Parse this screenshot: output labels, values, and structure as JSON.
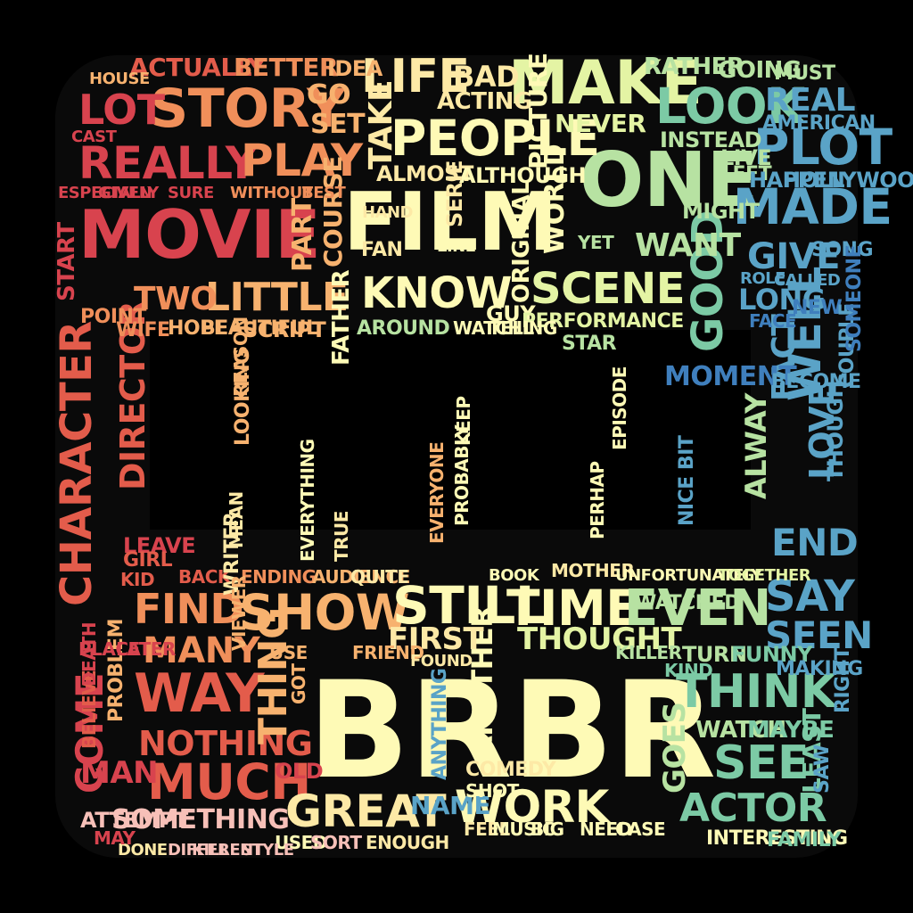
{
  "palette": {
    "red": "#d8434e",
    "red_orange": "#e35c4b",
    "orange": "#f08f5a",
    "light_orange": "#f7b26f",
    "cream": "#fde9a6",
    "pale_yellow": "#fefab6",
    "pale_green": "#e4f4a4",
    "green": "#b7e2a2",
    "teal": "#7ccaa5",
    "blue": "#5aa3c7",
    "dark_blue": "#3f7fbd",
    "pink": "#f7c0b8"
  },
  "words": [
    {
      "text": "BRBR",
      "color": "pale_yellow"
    },
    {
      "text": "FILM",
      "color": "pale_yellow"
    },
    {
      "text": "MOVIE",
      "color": "red"
    },
    {
      "text": "ONE",
      "color": "green"
    },
    {
      "text": "MAKE",
      "color": "pale_green"
    },
    {
      "text": "STORY",
      "color": "orange"
    },
    {
      "text": "PEOPLE",
      "color": "pale_yellow"
    },
    {
      "text": "LOOK",
      "color": "teal"
    },
    {
      "text": "PLOT",
      "color": "blue"
    },
    {
      "text": "MADE",
      "color": "blue"
    },
    {
      "text": "CHARACTER",
      "color": "red_orange"
    },
    {
      "text": "DIRECTOR",
      "color": "red_orange"
    },
    {
      "text": "REALLY",
      "color": "red"
    },
    {
      "text": "PLAY",
      "color": "orange"
    },
    {
      "text": "LIFE",
      "color": "cream"
    },
    {
      "text": "BAD",
      "color": "cream"
    },
    {
      "text": "KNOW",
      "color": "pale_yellow"
    },
    {
      "text": "SCENE",
      "color": "pale_green"
    },
    {
      "text": "LITTLE",
      "color": "light_orange"
    },
    {
      "text": "TWO",
      "color": "orange"
    },
    {
      "text": "GOOD",
      "color": "teal"
    },
    {
      "text": "WELL",
      "color": "blue"
    },
    {
      "text": "LOVE",
      "color": "blue"
    },
    {
      "text": "FACT",
      "color": "blue"
    },
    {
      "text": "GIVE",
      "color": "blue"
    },
    {
      "text": "REAL",
      "color": "blue"
    },
    {
      "text": "WANT",
      "color": "green"
    },
    {
      "text": "SHOW",
      "color": "light_orange"
    },
    {
      "text": "STILL",
      "color": "pale_yellow"
    },
    {
      "text": "TIME",
      "color": "pale_yellow"
    },
    {
      "text": "EVEN",
      "color": "green"
    },
    {
      "text": "FIND",
      "color": "orange"
    },
    {
      "text": "MANY",
      "color": "orange"
    },
    {
      "text": "WAY",
      "color": "red_orange"
    },
    {
      "text": "NOTHING",
      "color": "red_orange"
    },
    {
      "text": "MUCH",
      "color": "red_orange"
    },
    {
      "text": "SOMETHING",
      "color": "pink"
    },
    {
      "text": "GREAT",
      "color": "cream"
    },
    {
      "text": "WORK",
      "color": "pale_yellow"
    },
    {
      "text": "SEE",
      "color": "teal"
    },
    {
      "text": "ACTOR",
      "color": "teal"
    },
    {
      "text": "THINK",
      "color": "teal"
    },
    {
      "text": "SAY",
      "color": "blue"
    },
    {
      "text": "SEEN",
      "color": "blue"
    },
    {
      "text": "END",
      "color": "blue"
    },
    {
      "text": "COME",
      "color": "red"
    },
    {
      "text": "MAN",
      "color": "red"
    },
    {
      "text": "THING",
      "color": "light_orange"
    },
    {
      "text": "ANOTHER",
      "color": "pale_yellow"
    },
    {
      "text": "THOUGHT",
      "color": "pale_green"
    },
    {
      "text": "FIRST",
      "color": "cream"
    },
    {
      "text": "LOT",
      "color": "red"
    },
    {
      "text": "ACTUALLY",
      "color": "red_orange"
    },
    {
      "text": "BETTER",
      "color": "orange"
    },
    {
      "text": "SET",
      "color": "light_orange"
    },
    {
      "text": "GO",
      "color": "light_orange"
    },
    {
      "text": "IDEA",
      "color": "light_orange"
    },
    {
      "text": "ACTING",
      "color": "cream"
    },
    {
      "text": "NEVER",
      "color": "pale_green"
    },
    {
      "text": "RATHER",
      "color": "green"
    },
    {
      "text": "GOING",
      "color": "green"
    },
    {
      "text": "MUST",
      "color": "green"
    },
    {
      "text": "INSTEAD",
      "color": "green"
    },
    {
      "text": "ALMOST",
      "color": "cream"
    },
    {
      "text": "ALTHOUGH",
      "color": "pale_yellow"
    },
    {
      "text": "WORLD",
      "color": "pale_yellow"
    },
    {
      "text": "PICTURE",
      "color": "pale_yellow"
    },
    {
      "text": "TAKE",
      "color": "cream"
    },
    {
      "text": "SERIE",
      "color": "cream"
    },
    {
      "text": "LINE",
      "color": "pale_yellow"
    },
    {
      "text": "FAN",
      "color": "cream"
    },
    {
      "text": "PART",
      "color": "light_orange"
    },
    {
      "text": "COURSE",
      "color": "light_orange"
    },
    {
      "text": "HAND",
      "color": "cream"
    },
    {
      "text": "ORIGINAL",
      "color": "pale_yellow"
    },
    {
      "text": "GUY",
      "color": "pale_yellow"
    },
    {
      "text": "PERFORMANCE",
      "color": "pale_green"
    },
    {
      "text": "STAR",
      "color": "green"
    },
    {
      "text": "YET",
      "color": "green"
    },
    {
      "text": "MIGHT",
      "color": "green"
    },
    {
      "text": "LIVE",
      "color": "green"
    },
    {
      "text": "LEFT",
      "color": "green"
    },
    {
      "text": "HAPPEN",
      "color": "blue"
    },
    {
      "text": "HOLLYWOOD",
      "color": "blue"
    },
    {
      "text": "AMERICAN",
      "color": "blue"
    },
    {
      "text": "LONG",
      "color": "blue"
    },
    {
      "text": "ROLE",
      "color": "blue"
    },
    {
      "text": "CALLED",
      "color": "blue"
    },
    {
      "text": "SONG",
      "color": "blue"
    },
    {
      "text": "NEW",
      "color": "dark_blue"
    },
    {
      "text": "FACE",
      "color": "dark_blue"
    },
    {
      "text": "COUPLE",
      "color": "blue"
    },
    {
      "text": "SOMEONE",
      "color": "dark_blue"
    },
    {
      "text": "MOMENT",
      "color": "dark_blue"
    },
    {
      "text": "ALWAY",
      "color": "green"
    },
    {
      "text": "THOUGH",
      "color": "blue"
    },
    {
      "text": "BECOME",
      "color": "blue"
    },
    {
      "text": "NICE BIT",
      "color": "blue"
    },
    {
      "text": "AROUND",
      "color": "green"
    },
    {
      "text": "WATCHING",
      "color": "pale_yellow"
    },
    {
      "text": "TELL",
      "color": "pale_yellow"
    },
    {
      "text": "KEEP",
      "color": "pale_yellow"
    },
    {
      "text": "PROBABLY",
      "color": "pale_yellow"
    },
    {
      "text": "PERHAP",
      "color": "pale_yellow"
    },
    {
      "text": "EPISODE",
      "color": "pale_yellow"
    },
    {
      "text": "FATHER",
      "color": "pale_yellow"
    },
    {
      "text": "SCRIPT",
      "color": "light_orange"
    },
    {
      "text": "BEAUTIFUL",
      "color": "light_orange"
    },
    {
      "text": "HOPE",
      "color": "light_orange"
    },
    {
      "text": "WIFE",
      "color": "orange"
    },
    {
      "text": "POINT",
      "color": "orange"
    },
    {
      "text": "START",
      "color": "red"
    },
    {
      "text": "ESPECIALLY",
      "color": "red"
    },
    {
      "text": "GIVEN",
      "color": "red"
    },
    {
      "text": "SURE",
      "color": "red"
    },
    {
      "text": "WITHOUT",
      "color": "orange"
    },
    {
      "text": "BEST",
      "color": "orange"
    },
    {
      "text": "HOUSE",
      "color": "light_orange"
    },
    {
      "text": "CAST",
      "color": "red"
    },
    {
      "text": "LEAVE",
      "color": "red"
    },
    {
      "text": "GIRL",
      "color": "red_orange"
    },
    {
      "text": "KID",
      "color": "red_orange"
    },
    {
      "text": "BACK",
      "color": "red_orange"
    },
    {
      "text": "ENDING",
      "color": "orange"
    },
    {
      "text": "AUDIENCE",
      "color": "light_orange"
    },
    {
      "text": "QUITE",
      "color": "cream"
    },
    {
      "text": "MEAN",
      "color": "cream"
    },
    {
      "text": "LOOKING",
      "color": "light_orange"
    },
    {
      "text": "REASON",
      "color": "light_orange"
    },
    {
      "text": "EVERYONE",
      "color": "light_orange"
    },
    {
      "text": "EVERYTHING",
      "color": "pale_yellow"
    },
    {
      "text": "TRUE",
      "color": "cream"
    },
    {
      "text": "WRITER",
      "color": "cream"
    },
    {
      "text": "VIEWER",
      "color": "light_orange"
    },
    {
      "text": "USE",
      "color": "light_orange"
    },
    {
      "text": "FRIEND",
      "color": "light_orange"
    },
    {
      "text": "FOUND",
      "color": "cream"
    },
    {
      "text": "MOTHER",
      "color": "cream"
    },
    {
      "text": "BOOK",
      "color": "pale_yellow"
    },
    {
      "text": "UNFORTUNATELY",
      "color": "pale_yellow"
    },
    {
      "text": "TOGETHER",
      "color": "pale_green"
    },
    {
      "text": "WATCHED",
      "color": "green"
    },
    {
      "text": "KILLER",
      "color": "green"
    },
    {
      "text": "TURN",
      "color": "green"
    },
    {
      "text": "FUNNY",
      "color": "teal"
    },
    {
      "text": "KIND",
      "color": "teal"
    },
    {
      "text": "GOES",
      "color": "green"
    },
    {
      "text": "WATCH",
      "color": "green"
    },
    {
      "text": "MAYBE",
      "color": "teal"
    },
    {
      "text": "LEAST",
      "color": "teal"
    },
    {
      "text": "RIGHT",
      "color": "blue"
    },
    {
      "text": "MAKING",
      "color": "blue"
    },
    {
      "text": "NAME",
      "color": "blue"
    },
    {
      "text": "FEEL",
      "color": "cream"
    },
    {
      "text": "MUSIC",
      "color": "pale_yellow"
    },
    {
      "text": "BIG",
      "color": "pale_yellow"
    },
    {
      "text": "NEED",
      "color": "pale_yellow"
    },
    {
      "text": "CASE",
      "color": "pale_yellow"
    },
    {
      "text": "INTERESTING",
      "color": "pale_yellow"
    },
    {
      "text": "FAMILY",
      "color": "teal"
    },
    {
      "text": "SAW",
      "color": "blue"
    },
    {
      "text": "ANYTHING",
      "color": "blue"
    },
    {
      "text": "COMEDY",
      "color": "cream"
    },
    {
      "text": "SHOT",
      "color": "pale_yellow"
    },
    {
      "text": "USED",
      "color": "pale_yellow"
    },
    {
      "text": "SORT",
      "color": "pink"
    },
    {
      "text": "ENOUGH",
      "color": "cream"
    },
    {
      "text": "DONE",
      "color": "cream"
    },
    {
      "text": "DIFFERENT",
      "color": "pink"
    },
    {
      "text": "KILL",
      "color": "pink"
    },
    {
      "text": "STYLE",
      "color": "pink"
    },
    {
      "text": "ATTEMPT",
      "color": "pink"
    },
    {
      "text": "MAY",
      "color": "red"
    },
    {
      "text": "OLD",
      "color": "red"
    },
    {
      "text": "GOT",
      "color": "light_orange"
    },
    {
      "text": "PROBLEM",
      "color": "light_orange"
    },
    {
      "text": "BELIEVE",
      "color": "red_orange"
    },
    {
      "text": "DEATH",
      "color": "red"
    },
    {
      "text": "PLACE",
      "color": "red"
    },
    {
      "text": "LATER",
      "color": "red"
    },
    {
      "text": "PAST",
      "color": "red"
    }
  ]
}
